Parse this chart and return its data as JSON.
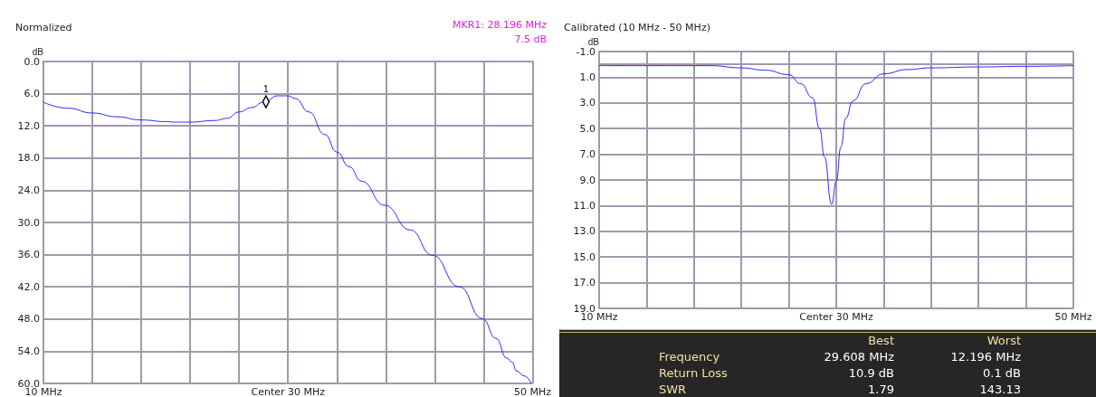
{
  "chart_data": [
    {
      "type": "line",
      "title": "Normalized",
      "ylabel": "dB",
      "annotations": [
        "MKR1: 28.196 MHz",
        "7.5 dB",
        {
          "text": "1",
          "x": 28.196,
          "y": 7.5
        }
      ],
      "x": [
        10,
        12,
        14,
        16,
        18,
        20,
        20.7,
        22,
        24,
        25,
        26,
        27,
        28,
        28.196,
        29.1,
        30,
        30.6,
        31.7,
        33,
        34,
        35,
        36,
        37.9,
        40,
        41.8,
        44,
        45.9,
        47,
        47.9,
        48.3,
        48.7,
        49.3,
        49.9
      ],
      "series": [
        {
          "color": "#2a2aff",
          "values": [
            7.6,
            8.7,
            9.6,
            10.3,
            10.9,
            11.2,
            11.3,
            11.3,
            11.0,
            10.6,
            9.4,
            8.6,
            7.6,
            7.4,
            6.4,
            6.4,
            6.9,
            9.4,
            13.6,
            16.9,
            19.6,
            22.3,
            26.8,
            31.4,
            36.1,
            42.0,
            47.9,
            51.6,
            55.3,
            56.0,
            57.7,
            58.6,
            60.0
          ]
        }
      ],
      "xlim": [
        10,
        50
      ],
      "xticks": [
        {
          "value": 10,
          "label": "10 MHz"
        },
        {
          "value": 14,
          "label": null
        },
        {
          "value": 18,
          "label": null
        },
        {
          "value": 22,
          "label": null
        },
        {
          "value": 26,
          "label": null
        },
        {
          "value": 30,
          "label": "Center 30 MHz"
        },
        {
          "value": 34,
          "label": null
        },
        {
          "value": 38,
          "label": null
        },
        {
          "value": 42,
          "label": null
        },
        {
          "value": 46,
          "label": null
        },
        {
          "value": 50,
          "label": "50 MHz"
        }
      ],
      "ylim": [
        60,
        0
      ],
      "yticks": [
        {
          "value": 0,
          "label": "0.0"
        },
        {
          "value": 6,
          "label": "6.0"
        },
        {
          "value": 12,
          "label": "12.0"
        },
        {
          "value": 18,
          "label": "18.0"
        },
        {
          "value": 24,
          "label": "24.0"
        },
        {
          "value": 30,
          "label": "30.0"
        },
        {
          "value": 36,
          "label": "36.0"
        },
        {
          "value": 42,
          "label": "42.0"
        },
        {
          "value": 48,
          "label": "48.0"
        },
        {
          "value": 54,
          "label": "54.0"
        },
        {
          "value": 60,
          "label": "60.0"
        }
      ],
      "grid": true,
      "marker": "none",
      "line_style": "solid"
    },
    {
      "type": "line",
      "title": "Calibrated (10 MHz - 50 MHz)",
      "ylabel": "dB",
      "x": [
        10,
        14,
        19.4,
        22,
        24,
        26,
        27,
        28,
        28.6,
        29,
        29.608,
        30,
        30.4,
        30.8,
        31.4,
        32.5,
        34,
        36,
        38,
        42,
        46,
        50
      ],
      "series": [
        {
          "color": "#2a2aff",
          "values": [
            0.1,
            0.1,
            0.1,
            0.27,
            0.45,
            0.8,
            1.5,
            2.6,
            5.0,
            7.2,
            10.9,
            9.1,
            6.4,
            4.2,
            2.85,
            1.5,
            0.73,
            0.4,
            0.27,
            0.2,
            0.15,
            0.1
          ]
        }
      ],
      "xlim": [
        10,
        50
      ],
      "xticks": [
        {
          "value": 10,
          "label": "10 MHz"
        },
        {
          "value": 14,
          "label": null
        },
        {
          "value": 18,
          "label": null
        },
        {
          "value": 22,
          "label": null
        },
        {
          "value": 26,
          "label": null
        },
        {
          "value": 30,
          "label": "Center 30 MHz"
        },
        {
          "value": 34,
          "label": null
        },
        {
          "value": 38,
          "label": null
        },
        {
          "value": 42,
          "label": null
        },
        {
          "value": 46,
          "label": null
        },
        {
          "value": 50,
          "label": "50 MHz"
        }
      ],
      "ylim": [
        19,
        -1
      ],
      "yticks": [
        {
          "value": -1,
          "label": "-1.0"
        },
        {
          "value": 1,
          "label": "1.0"
        },
        {
          "value": 3,
          "label": "3.0"
        },
        {
          "value": 5,
          "label": "5.0"
        },
        {
          "value": 7,
          "label": "7.0"
        },
        {
          "value": 9,
          "label": "9.0"
        },
        {
          "value": 11,
          "label": "11.0"
        },
        {
          "value": 13,
          "label": "13.0"
        },
        {
          "value": 15,
          "label": "15.0"
        },
        {
          "value": 17,
          "label": "17.0"
        },
        {
          "value": 19,
          "label": "19.0"
        }
      ],
      "grid": true,
      "marker": "none",
      "line_style": "solid"
    },
    {
      "type": "other",
      "annotations": [
        "Best",
        "Worst",
        "Frequency",
        "29.608 MHz",
        "12.196 MHz",
        "Return Loss",
        "10.9 dB",
        "0.1 dB",
        "SWR",
        "1.79",
        "143.13"
      ]
    }
  ]
}
